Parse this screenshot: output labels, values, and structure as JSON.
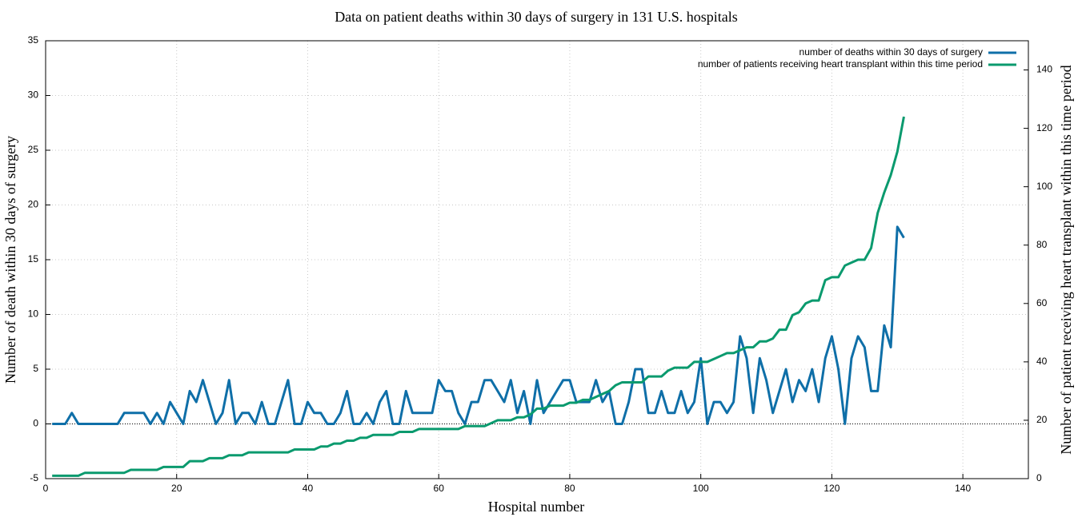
{
  "chart_data": {
    "type": "line",
    "title": "Data on patient deaths within 30 days of surgery in 131 U.S. hospitals",
    "x_label": "Hospital number",
    "y_label": "Number of death within 30 days of surgery",
    "y2_label": "Number of patient receiving heart transplant within this time period",
    "x": [
      1,
      2,
      3,
      4,
      5,
      6,
      7,
      8,
      9,
      10,
      11,
      12,
      13,
      14,
      15,
      16,
      17,
      18,
      19,
      20,
      21,
      22,
      23,
      24,
      25,
      26,
      27,
      28,
      29,
      30,
      31,
      32,
      33,
      34,
      35,
      36,
      37,
      38,
      39,
      40,
      41,
      42,
      43,
      44,
      45,
      46,
      47,
      48,
      49,
      50,
      51,
      52,
      53,
      54,
      55,
      56,
      57,
      58,
      59,
      60,
      61,
      62,
      63,
      64,
      65,
      66,
      67,
      68,
      69,
      70,
      71,
      72,
      73,
      74,
      75,
      76,
      77,
      78,
      79,
      80,
      81,
      82,
      83,
      84,
      85,
      86,
      87,
      88,
      89,
      90,
      91,
      92,
      93,
      94,
      95,
      96,
      97,
      98,
      99,
      100,
      101,
      102,
      103,
      104,
      105,
      106,
      107,
      108,
      109,
      110,
      111,
      112,
      113,
      114,
      115,
      116,
      117,
      118,
      119,
      120,
      121,
      122,
      123,
      124,
      125,
      126,
      127,
      128,
      129,
      130,
      131
    ],
    "series": [
      {
        "name": "number of deaths within 30 days of surgery",
        "color": "#0f6fa8",
        "axis": "y",
        "values": [
          0,
          0,
          0,
          1,
          0,
          0,
          0,
          0,
          0,
          0,
          0,
          1,
          1,
          1,
          1,
          0,
          1,
          0,
          2,
          1,
          0,
          3,
          2,
          4,
          2,
          0,
          1,
          4,
          0,
          1,
          1,
          0,
          2,
          0,
          0,
          2,
          4,
          0,
          0,
          2,
          1,
          1,
          0,
          0,
          1,
          3,
          0,
          0,
          1,
          0,
          2,
          3,
          0,
          0,
          3,
          1,
          1,
          1,
          1,
          4,
          3,
          3,
          1,
          0,
          2,
          2,
          4,
          4,
          3,
          2,
          4,
          1,
          3,
          0,
          4,
          1,
          2,
          3,
          4,
          4,
          2,
          2,
          2,
          4,
          2,
          3,
          0,
          0,
          2,
          5,
          5,
          1,
          1,
          3,
          1,
          1,
          3,
          1,
          2,
          6,
          0,
          2,
          2,
          1,
          2,
          8,
          6,
          1,
          6,
          4,
          1,
          3,
          5,
          2,
          4,
          3,
          5,
          2,
          6,
          8,
          5,
          0,
          6,
          8,
          7,
          3,
          3,
          9,
          7,
          18,
          17
        ]
      },
      {
        "name": "number of patients receiving heart transplant within this time period",
        "color": "#0a9a6e",
        "axis": "y2",
        "values": [
          1,
          1,
          1,
          1,
          1,
          2,
          2,
          2,
          2,
          2,
          2,
          2,
          3,
          3,
          3,
          3,
          3,
          4,
          4,
          4,
          4,
          6,
          6,
          6,
          7,
          7,
          7,
          8,
          8,
          8,
          9,
          9,
          9,
          9,
          9,
          9,
          9,
          10,
          10,
          10,
          10,
          11,
          11,
          12,
          12,
          13,
          13,
          14,
          14,
          15,
          15,
          15,
          15,
          16,
          16,
          16,
          17,
          17,
          17,
          17,
          17,
          17,
          17,
          18,
          18,
          18,
          18,
          19,
          20,
          20,
          20,
          21,
          21,
          22,
          24,
          24,
          25,
          25,
          25,
          26,
          26,
          27,
          27,
          28,
          29,
          30,
          32,
          33,
          33,
          33,
          33,
          35,
          35,
          35,
          37,
          38,
          38,
          38,
          40,
          40,
          40,
          41,
          42,
          43,
          43,
          44,
          45,
          45,
          47,
          47,
          48,
          51,
          51,
          56,
          57,
          60,
          61,
          61,
          68,
          69,
          69,
          73,
          74,
          75,
          75,
          79,
          91,
          98,
          104,
          112,
          124
        ]
      }
    ],
    "xlim": [
      0,
      150
    ],
    "xticks": [
      0,
      20,
      40,
      60,
      80,
      100,
      120,
      140
    ],
    "ylim": [
      -5,
      35
    ],
    "yticks": [
      -5,
      0,
      5,
      10,
      15,
      20,
      25,
      30,
      35
    ],
    "y2lim": [
      0,
      150
    ],
    "y2ticks": [
      0,
      20,
      40,
      60,
      80,
      100,
      120,
      140
    ],
    "grid": true,
    "legend": "top-right"
  }
}
